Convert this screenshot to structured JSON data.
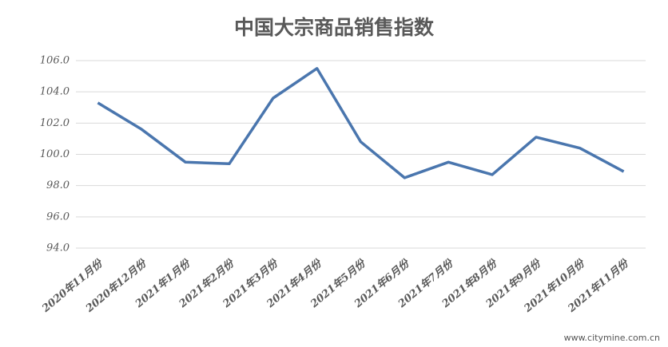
{
  "chart_data": {
    "type": "line",
    "title": "中国大宗商品销售指数",
    "categories": [
      "2020年11月份",
      "2020年12月份",
      "2021年1月份",
      "2021年2月份",
      "2021年3月份",
      "2021年4月份",
      "2021年5月份",
      "2021年6月份",
      "2021年7月份",
      "2021年8月份",
      "2021年9月份",
      "2021年10月份",
      "2021年11月份"
    ],
    "series": [
      {
        "name": "中国大宗商品销售指数",
        "color": "#4a76ae",
        "values": [
          103.3,
          101.6,
          99.5,
          99.4,
          103.6,
          105.5,
          100.8,
          98.5,
          99.5,
          98.7,
          101.1,
          100.4,
          98.9
        ]
      }
    ],
    "ylim": [
      94,
      106
    ],
    "yticks": [
      {
        "value": 94,
        "label": "94.0"
      },
      {
        "value": 96,
        "label": "96.0"
      },
      {
        "value": 98,
        "label": "98.0"
      },
      {
        "value": 100,
        "label": "100.0"
      },
      {
        "value": 102,
        "label": "102.0"
      },
      {
        "value": 104,
        "label": "104.0"
      },
      {
        "value": 106,
        "label": "106.0"
      }
    ],
    "grid": true,
    "watermark": "www.citymine.com.cn"
  }
}
